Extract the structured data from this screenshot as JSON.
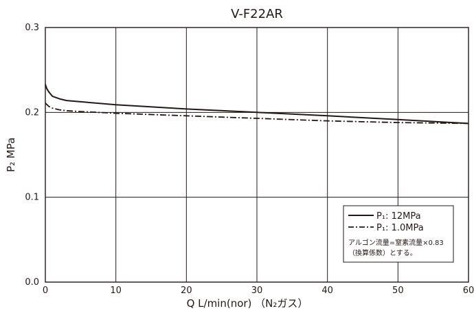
{
  "chart_data": {
    "type": "line",
    "title": "V-F22AR",
    "xlabel": "Q  L/min(nor)   （N₂ガス）",
    "ylabel": "P₂  MPa",
    "xlim": [
      0,
      60
    ],
    "ylim": [
      0,
      0.3
    ],
    "xticks": [
      0,
      10,
      20,
      30,
      40,
      50,
      60
    ],
    "xtick_labels": [
      "0",
      "10",
      "20",
      "30",
      "40",
      "50",
      "60"
    ],
    "yticks": [
      0,
      0.1,
      0.2,
      0.3
    ],
    "ytick_labels": [
      "0.0",
      "0.1",
      "0.2",
      "0.3"
    ],
    "grid": true,
    "legend_position": "bottom-right",
    "series": [
      {
        "name": "P₁: 12MPa",
        "style": "solid",
        "color": "#231815",
        "x": [
          0,
          0.2,
          0.5,
          1,
          2,
          3,
          5,
          10,
          20,
          30,
          40,
          50,
          60
        ],
        "y": [
          0.233,
          0.228,
          0.224,
          0.219,
          0.216,
          0.214,
          0.2125,
          0.209,
          0.204,
          0.2,
          0.196,
          0.1915,
          0.187
        ]
      },
      {
        "name": "P₁: 1.0MPa",
        "style": "dashdot",
        "color": "#231815",
        "x": [
          0,
          0.5,
          1,
          2,
          3,
          5,
          10,
          20,
          30,
          40,
          50,
          60
        ],
        "y": [
          0.211,
          0.207,
          0.205,
          0.203,
          0.202,
          0.201,
          0.199,
          0.196,
          0.193,
          0.19,
          0.188,
          0.187
        ]
      }
    ],
    "note_lines": [
      "アルゴン流量=窒素流量×0.83",
      "（換算係数）とする。"
    ]
  }
}
